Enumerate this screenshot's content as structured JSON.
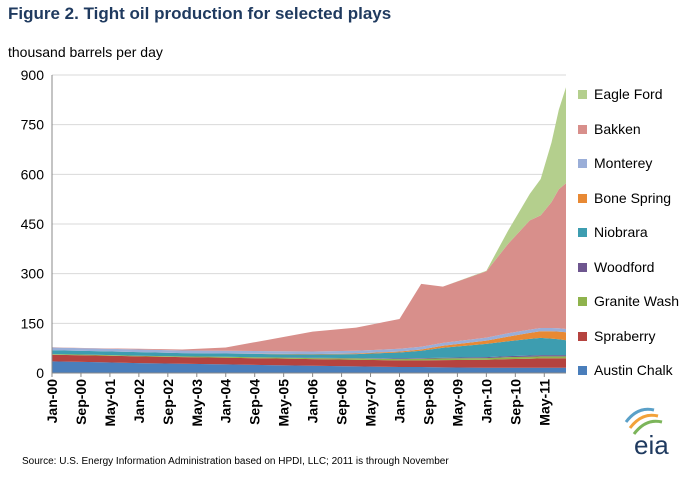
{
  "chart_data": {
    "type": "area",
    "title": "Figure 2.  Tight oil production for selected plays",
    "ylabel": "thousand barrels per day",
    "xlabel": "",
    "ylim": [
      0,
      900
    ],
    "yticks": [
      0,
      150,
      300,
      450,
      600,
      750,
      900
    ],
    "xtick_labels": [
      "Jan-00",
      "Sep-00",
      "May-01",
      "Jan-02",
      "Sep-02",
      "May-03",
      "Jan-04",
      "Sep-04",
      "May-05",
      "Jan-06",
      "Sep-06",
      "May-07",
      "Jan-08",
      "Sep-08",
      "May-09",
      "Jan-10",
      "Sep-10",
      "May-11"
    ],
    "x": [
      "Jan-00",
      "Jan-01",
      "Jan-02",
      "Jan-03",
      "Jan-04",
      "Jan-05",
      "Jan-06",
      "Jan-07",
      "Jan-08",
      "Jul-08",
      "Jan-09",
      "Jan-10",
      "Jul-10",
      "Jan-11",
      "Apr-11",
      "Jul-11",
      "Sep-11",
      "Nov-11"
    ],
    "stacked": true,
    "legend_position": "right",
    "grid": "horizontal",
    "series": [
      {
        "name": "Austin Chalk",
        "color": "#4a7ebb",
        "values": [
          35,
          33,
          30,
          28,
          26,
          24,
          22,
          20,
          18,
          18,
          17,
          16,
          16,
          16,
          16,
          16,
          16,
          16
        ]
      },
      {
        "name": "Spraberry",
        "color": "#b5433f",
        "values": [
          20,
          20,
          20,
          20,
          20,
          20,
          20,
          20,
          20,
          20,
          22,
          24,
          26,
          27,
          28,
          28,
          28,
          28
        ]
      },
      {
        "name": "Granite Wash",
        "color": "#8fb34d",
        "values": [
          2,
          2,
          2,
          2,
          3,
          3,
          3,
          4,
          4,
          5,
          5,
          5,
          6,
          6,
          6,
          6,
          6,
          6
        ]
      },
      {
        "name": "Woodford",
        "color": "#6e568f",
        "values": [
          0,
          0,
          0,
          0,
          0,
          0,
          1,
          1,
          2,
          2,
          2,
          3,
          3,
          4,
          4,
          4,
          4,
          4
        ]
      },
      {
        "name": "Niobrara",
        "color": "#3d9db0",
        "values": [
          12,
          11,
          11,
          10,
          10,
          10,
          10,
          12,
          18,
          22,
          30,
          40,
          45,
          50,
          52,
          50,
          48,
          45
        ]
      },
      {
        "name": "Bone Spring",
        "color": "#e88934",
        "values": [
          0,
          0,
          0,
          0,
          0,
          1,
          1,
          2,
          3,
          4,
          6,
          10,
          14,
          18,
          20,
          22,
          23,
          24
        ]
      },
      {
        "name": "Monterey",
        "color": "#9aaed8",
        "values": [
          8,
          8,
          8,
          8,
          8,
          8,
          8,
          8,
          8,
          8,
          9,
          9,
          10,
          10,
          10,
          10,
          10,
          10
        ]
      },
      {
        "name": "Bakken",
        "color": "#d88f8b",
        "values": [
          1,
          1,
          2,
          3,
          10,
          35,
          60,
          70,
          90,
          190,
          170,
          200,
          270,
          330,
          340,
          380,
          420,
          440
        ]
      },
      {
        "name": "Eagle Ford",
        "color": "#b4cf8d",
        "values": [
          0,
          0,
          0,
          0,
          0,
          0,
          0,
          0,
          0,
          0,
          0,
          2,
          40,
          80,
          110,
          180,
          240,
          290
        ]
      }
    ]
  },
  "source": "Source:  U.S. Energy Information Administration based on HPDI, LLC; 2011 is through November",
  "logo_text": "eia"
}
